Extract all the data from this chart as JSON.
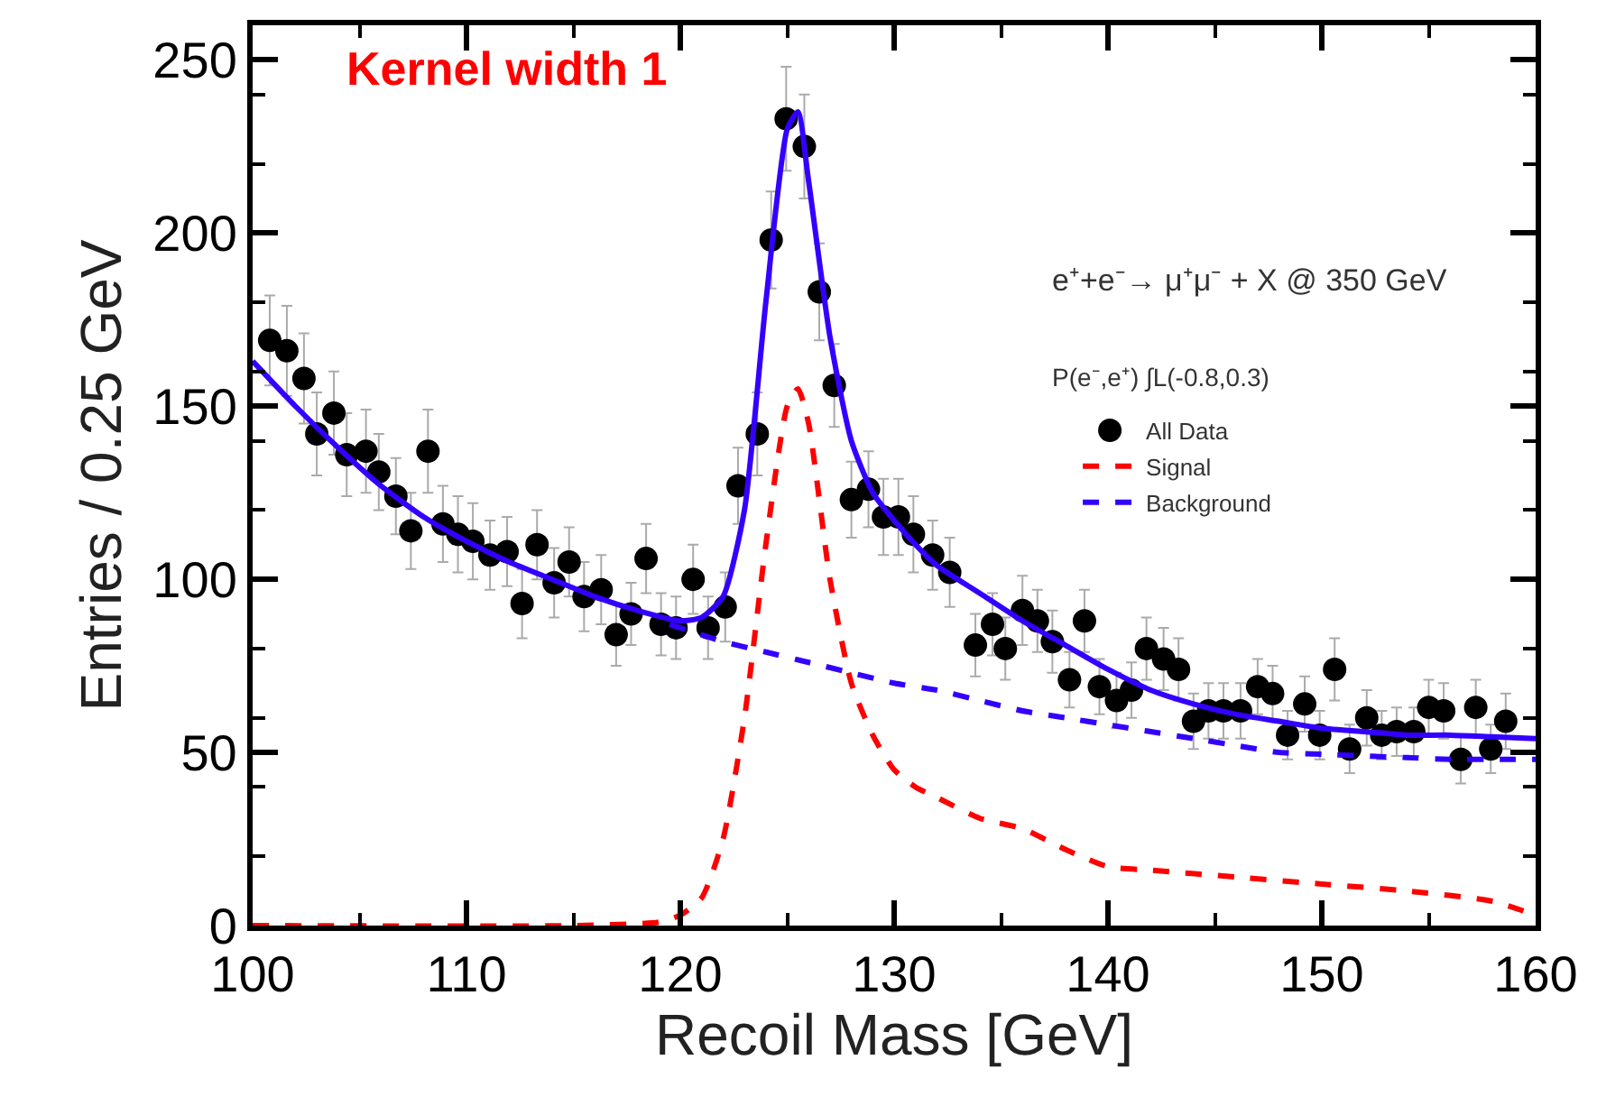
{
  "chart_data": {
    "type": "scatter",
    "xlabel": "Recoil Mass [GeV]",
    "ylabel": "Entries / 0.25 GeV",
    "xlim": [
      100,
      160
    ],
    "xticks": [
      100,
      110,
      120,
      130,
      140,
      150,
      160
    ],
    "ylim": [
      0,
      260
    ],
    "yticks": [
      0,
      50,
      100,
      150,
      200,
      250
    ],
    "legend": "right",
    "annotations": [
      "Kernel width 1",
      "e⁺+e⁻→ μ⁺μ⁻ + X @ 350 GeV",
      "P(e⁻,e⁺) ∫L(-0.8,0.3)"
    ],
    "series": [
      {
        "name": "All Data",
        "marker": "circle",
        "color": "#000000",
        "x": [
          100.8,
          101.6,
          102.4,
          103.0,
          103.8,
          104.4,
          105.3,
          105.9,
          106.7,
          107.4,
          108.2,
          108.9,
          109.6,
          110.3,
          111.1,
          111.9,
          112.6,
          113.3,
          114.1,
          114.8,
          115.5,
          116.3,
          117.0,
          117.7,
          118.4,
          119.1,
          119.8,
          120.6,
          121.3,
          122.1,
          122.7,
          123.6,
          124.25,
          124.95,
          125.8,
          126.5,
          127.2,
          128.0,
          128.8,
          129.5,
          130.2,
          130.9,
          131.8,
          132.6,
          133.8,
          134.6,
          135.2,
          136.0,
          136.7,
          137.4,
          138.2,
          138.9,
          139.6,
          140.4,
          141.1,
          141.8,
          142.6,
          143.3,
          144.0,
          144.7,
          145.4,
          146.2,
          147.0,
          147.7,
          148.4,
          149.2,
          149.9,
          150.6,
          151.3,
          152.1,
          152.8,
          153.5,
          154.3,
          155.0,
          155.7,
          156.5,
          157.2,
          157.9,
          158.6
        ],
        "values": [
          169,
          166,
          158,
          142,
          148,
          136,
          137,
          131,
          124,
          114,
          137,
          116,
          113,
          111,
          107,
          108,
          93,
          110,
          99,
          105,
          95,
          97,
          84,
          90,
          106,
          87,
          86,
          100,
          86,
          92,
          127,
          142,
          198,
          233,
          225,
          183,
          156,
          123,
          126,
          118,
          118,
          113,
          107,
          102,
          81,
          87,
          80,
          91,
          88,
          82,
          71,
          88,
          69,
          65,
          68,
          80,
          77,
          74,
          59,
          62,
          62,
          62,
          69,
          67,
          55,
          64,
          55,
          74,
          51,
          60,
          55,
          56,
          56,
          63,
          62,
          48,
          63,
          51,
          59
        ],
        "errors": [
          13,
          13,
          13,
          12,
          12,
          12,
          12,
          11,
          11,
          11,
          12,
          11,
          11,
          11,
          10,
          10,
          10,
          10,
          10,
          10,
          10,
          10,
          9,
          9,
          10,
          9,
          9,
          10,
          9,
          10,
          11,
          12,
          14,
          15,
          15,
          14,
          12,
          11,
          11,
          11,
          11,
          11,
          10,
          10,
          9,
          9,
          9,
          10,
          9,
          9,
          8,
          9,
          8,
          8,
          8,
          9,
          9,
          9,
          8,
          8,
          8,
          8,
          8,
          8,
          7,
          8,
          7,
          9,
          7,
          8,
          7,
          7,
          7,
          8,
          8,
          7,
          8,
          7,
          8
        ]
      },
      {
        "name": null,
        "type": "line",
        "line_style": "solid",
        "color": "#3300ff",
        "x": [
          100,
          102,
          104,
          106,
          108,
          110,
          112,
          114,
          116,
          118,
          120,
          121,
          122,
          123,
          124,
          125,
          125.5,
          126,
          127,
          128,
          129,
          130,
          131,
          132,
          134,
          136,
          138,
          140,
          142,
          144,
          146,
          148,
          150,
          152,
          154,
          156,
          158,
          160
        ],
        "values": [
          163,
          150,
          138,
          127,
          118,
          111,
          105,
          100,
          95,
          91,
          88,
          89,
          95,
          120,
          180,
          230,
          235,
          215,
          170,
          140,
          125,
          117,
          110,
          104,
          96,
          88,
          81,
          74,
          68,
          64,
          61,
          59,
          57,
          56,
          55,
          55,
          54.5,
          54
        ]
      },
      {
        "name": "Signal",
        "type": "line",
        "line_style": "dashed",
        "color": "#ff0000",
        "x": [
          100,
          115,
          119,
          120,
          121,
          122,
          123,
          124,
          125,
          125.5,
          126,
          127,
          128,
          129,
          130,
          131,
          132,
          134,
          136,
          138,
          140,
          142,
          146,
          150,
          154,
          158,
          160
        ],
        "values": [
          0,
          0,
          1,
          3,
          8,
          25,
          60,
          110,
          150,
          155,
          145,
          100,
          70,
          55,
          45,
          40,
          37,
          31,
          28,
          22,
          17,
          16,
          14,
          12,
          10,
          7,
          3
        ]
      },
      {
        "name": "Background",
        "type": "line",
        "line_style": "dashed",
        "color": "#3300ff",
        "x": [
          119.5,
          122,
          124,
          126,
          128,
          130,
          132,
          134,
          136,
          138,
          140,
          142,
          144,
          146,
          148,
          150,
          152,
          154,
          156,
          158,
          160
        ],
        "values": [
          87,
          82,
          79,
          76,
          73,
          70,
          68,
          65,
          62,
          60,
          58,
          56,
          54,
          52,
          50,
          49.5,
          49,
          48.5,
          48,
          48,
          48
        ]
      }
    ]
  }
}
